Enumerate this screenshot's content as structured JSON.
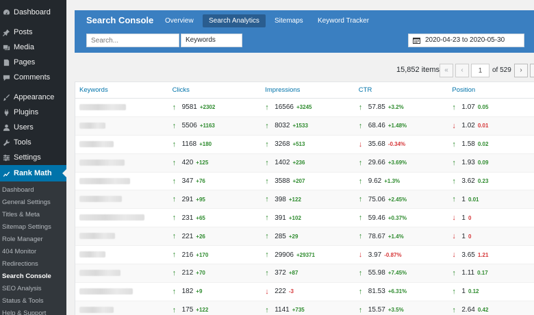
{
  "sidebar": {
    "items": [
      {
        "label": "Dashboard",
        "icon": "dashboard-icon"
      },
      {
        "label": "Posts",
        "icon": "pin-icon"
      },
      {
        "label": "Media",
        "icon": "media-icon"
      },
      {
        "label": "Pages",
        "icon": "pages-icon"
      },
      {
        "label": "Comments",
        "icon": "comment-icon"
      },
      {
        "label": "Appearance",
        "icon": "brush-icon"
      },
      {
        "label": "Plugins",
        "icon": "plug-icon"
      },
      {
        "label": "Users",
        "icon": "user-icon"
      },
      {
        "label": "Tools",
        "icon": "wrench-icon"
      },
      {
        "label": "Settings",
        "icon": "settings-icon"
      },
      {
        "label": "Rank Math",
        "icon": "rank-math-icon"
      }
    ],
    "submenu": [
      "Dashboard",
      "General Settings",
      "Titles & Meta",
      "Sitemap Settings",
      "Role Manager",
      "404 Monitor",
      "Redirections",
      "Search Console",
      "SEO Analysis",
      "Status & Tools",
      "Help & Support"
    ]
  },
  "header": {
    "title": "Search Console",
    "tabs": [
      "Overview",
      "Search Analytics",
      "Sitemaps",
      "Keyword Tracker"
    ],
    "search_placeholder": "Search...",
    "filter_value": "Keywords",
    "date_range": "2020-04-23 to 2020-05-30"
  },
  "pagination": {
    "items_count": "15,852 items",
    "first": "«",
    "prev": "‹",
    "current_page": "1",
    "of_pages": "of 529",
    "next": "›"
  },
  "table": {
    "columns": [
      "Keywords",
      "Clicks",
      "Impressions",
      "CTR",
      "Position"
    ],
    "rows": [
      {
        "clicks": [
          "up",
          "9581",
          "+2302"
        ],
        "impressions": [
          "up",
          "16566",
          "+3245"
        ],
        "ctr": [
          "up",
          "57.85",
          "+3.2%"
        ],
        "position": [
          "up",
          "1.07",
          "0.05"
        ]
      },
      {
        "clicks": [
          "up",
          "5506",
          "+1163"
        ],
        "impressions": [
          "up",
          "8032",
          "+1533"
        ],
        "ctr": [
          "up",
          "68.46",
          "+1.48%"
        ],
        "position": [
          "down",
          "1.02",
          "0.01"
        ]
      },
      {
        "clicks": [
          "up",
          "1168",
          "+180"
        ],
        "impressions": [
          "up",
          "3268",
          "+513"
        ],
        "ctr": [
          "down",
          "35.68",
          "-0.34%"
        ],
        "position": [
          "up",
          "1.58",
          "0.02"
        ]
      },
      {
        "clicks": [
          "up",
          "420",
          "+125"
        ],
        "impressions": [
          "up",
          "1402",
          "+236"
        ],
        "ctr": [
          "up",
          "29.66",
          "+3.69%"
        ],
        "position": [
          "up",
          "1.93",
          "0.09"
        ]
      },
      {
        "clicks": [
          "up",
          "347",
          "+76"
        ],
        "impressions": [
          "up",
          "3588",
          "+207"
        ],
        "ctr": [
          "up",
          "9.62",
          "+1.3%"
        ],
        "position": [
          "up",
          "3.62",
          "0.23"
        ]
      },
      {
        "clicks": [
          "up",
          "291",
          "+95"
        ],
        "impressions": [
          "up",
          "398",
          "+122"
        ],
        "ctr": [
          "up",
          "75.06",
          "+2.45%"
        ],
        "position": [
          "up",
          "1",
          "0.01"
        ]
      },
      {
        "clicks": [
          "up",
          "231",
          "+65"
        ],
        "impressions": [
          "up",
          "391",
          "+102"
        ],
        "ctr": [
          "up",
          "59.46",
          "+0.37%"
        ],
        "position": [
          "down",
          "1",
          "0"
        ]
      },
      {
        "clicks": [
          "up",
          "221",
          "+26"
        ],
        "impressions": [
          "up",
          "285",
          "+29"
        ],
        "ctr": [
          "up",
          "78.67",
          "+1.4%"
        ],
        "position": [
          "down",
          "1",
          "0"
        ]
      },
      {
        "clicks": [
          "up",
          "216",
          "+170"
        ],
        "impressions": [
          "up",
          "29906",
          "+29371"
        ],
        "ctr": [
          "down",
          "3.97",
          "-0.87%"
        ],
        "position": [
          "down",
          "3.65",
          "1.21"
        ]
      },
      {
        "clicks": [
          "up",
          "212",
          "+70"
        ],
        "impressions": [
          "up",
          "372",
          "+87"
        ],
        "ctr": [
          "up",
          "55.98",
          "+7.45%"
        ],
        "position": [
          "up",
          "1.11",
          "0.17"
        ]
      },
      {
        "clicks": [
          "up",
          "182",
          "+9"
        ],
        "impressions": [
          "down",
          "222",
          "-3"
        ],
        "ctr": [
          "up",
          "81.53",
          "+6.31%"
        ],
        "position": [
          "up",
          "1",
          "0.12"
        ]
      },
      {
        "clicks": [
          "up",
          "175",
          "+122"
        ],
        "impressions": [
          "up",
          "1141",
          "+735"
        ],
        "ctr": [
          "up",
          "15.57",
          "+3.5%"
        ],
        "position": [
          "up",
          "2.64",
          "0.42"
        ]
      }
    ]
  },
  "colors": {
    "sidebar_bg": "#23282d",
    "accent": "#0073aa",
    "header_bg": "#3a7fc1",
    "positive": "#2e8b2e",
    "negative": "#d63638"
  }
}
